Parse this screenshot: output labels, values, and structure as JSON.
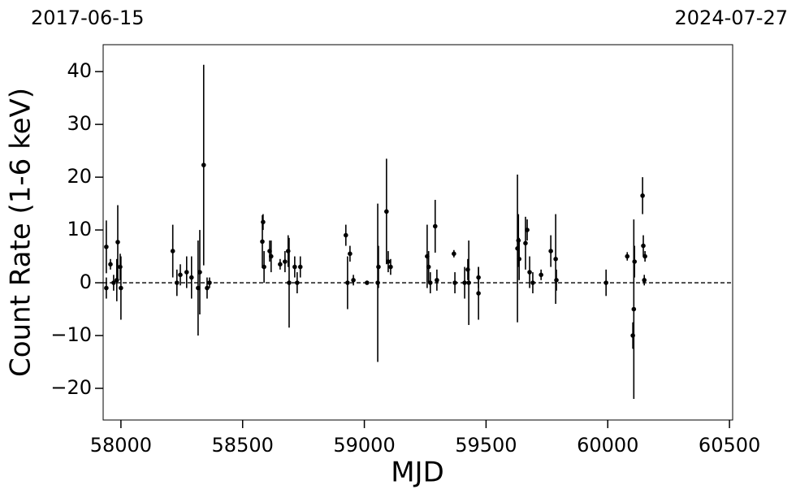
{
  "chart_data": {
    "type": "scatter",
    "xlabel": "MJD",
    "ylabel": "Count Rate (1-6 keV)",
    "top_left_label": "2017-06-15",
    "top_right_label": "2024-07-27",
    "xlim": [
      57927,
      60513
    ],
    "ylim": [
      -26,
      45.1
    ],
    "xticks": [
      58000,
      58500,
      59000,
      59500,
      60000,
      60500
    ],
    "yticks": [
      {
        "value": -20,
        "label": "−20"
      },
      {
        "value": -10,
        "label": "−10"
      },
      0,
      10,
      20,
      30,
      40
    ],
    "reference_line": 0,
    "color": "#000000",
    "x": [
      57940,
      57940,
      57957,
      57970,
      57987,
      57983,
      57997,
      58000,
      58213,
      58230,
      58244,
      58270,
      58290,
      58317,
      58324,
      58340,
      58354,
      58364,
      58584,
      58581,
      58588,
      58611,
      58617,
      58654,
      58674,
      58687,
      58691,
      58714,
      58724,
      58737,
      58924,
      58931,
      58941,
      58955,
      59011,
      59055,
      59058,
      59091,
      59098,
      59108,
      59258,
      59264,
      59271,
      59291,
      59298,
      59368,
      59372,
      59412,
      59425,
      59429,
      59469,
      59469,
      59629,
      59633,
      59636,
      59662,
      59669,
      59679,
      59692,
      59726,
      59766,
      59786,
      59789,
      59993,
      60080,
      60103,
      60107,
      60110,
      60143,
      60146,
      60153,
      60150
    ],
    "values": [
      6.8,
      -1,
      3.5,
      0,
      7.7,
      0.5,
      3,
      -1,
      6,
      0,
      1.5,
      2,
      1,
      -1,
      2,
      22.3,
      -1,
      0,
      11.5,
      7.8,
      3,
      6,
      5,
      3.5,
      4,
      6,
      0,
      3,
      0,
      3,
      9,
      0,
      5.5,
      0.5,
      0,
      0,
      3,
      13.5,
      4,
      3,
      5,
      3,
      0,
      10.7,
      0.5,
      5.5,
      0,
      0,
      2.5,
      0,
      1,
      -2,
      6.5,
      8,
      4.5,
      7.5,
      10,
      2,
      0,
      1.5,
      6,
      4.5,
      0.5,
      0,
      5,
      -10,
      -5,
      4,
      16.5,
      7,
      5,
      0.5
    ],
    "errors": [
      5,
      2,
      1,
      1.5,
      7,
      4,
      2.5,
      6,
      5,
      2.5,
      2,
      3,
      4,
      9,
      8,
      19,
      2,
      1,
      1.5,
      5,
      3,
      2,
      3,
      1,
      2,
      3,
      8.5,
      2,
      2,
      2,
      2,
      5,
      1.5,
      1,
      0.3,
      15,
      4,
      10,
      2,
      1.5,
      6,
      3,
      2,
      5,
      2,
      0.7,
      2,
      3,
      2,
      8,
      2,
      5,
      14,
      5,
      4,
      5,
      2,
      3,
      2,
      1,
      3,
      8.5,
      2,
      2.5,
      0.8,
      2.5,
      17,
      3,
      3.5,
      2,
      1,
      1
    ]
  }
}
